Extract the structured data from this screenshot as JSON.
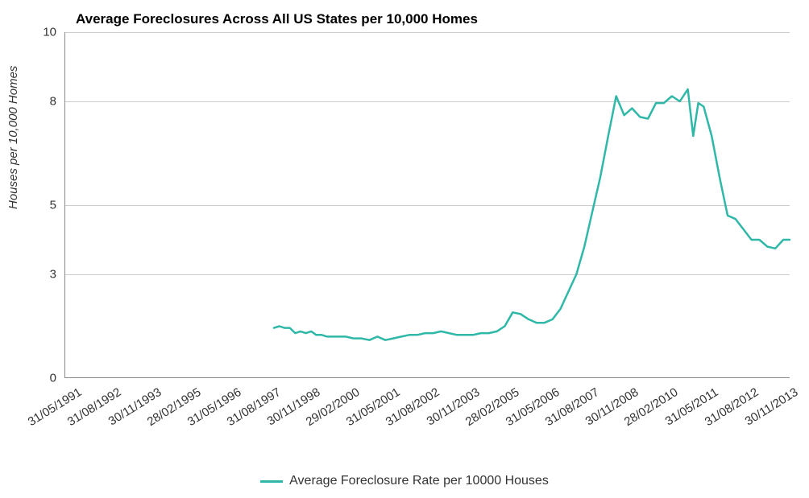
{
  "chart": {
    "type": "line",
    "title": "Average Foreclosures Across All US States per 10,000 Homes",
    "title_fontsize": 17,
    "title_fontweight": "bold",
    "y_axis_label": "Houses per 10,000 Homes",
    "y_axis_fontsize": 15,
    "y_axis_fontstyle": "italic",
    "background_color": "#ffffff",
    "grid_color": "#cccccc",
    "axis_color": "#888888",
    "text_color": "#333333",
    "line_color": "#2fb8a8",
    "line_width": 2.5,
    "ylim": [
      0,
      10
    ],
    "y_ticks": [
      0,
      3,
      5,
      8,
      10
    ],
    "x_tick_labels": [
      "31/05/1991",
      "31/08/1992",
      "30/11/1993",
      "28/02/1995",
      "31/05/1996",
      "31/08/1997",
      "30/11/1998",
      "29/02/2000",
      "31/05/2001",
      "31/08/2002",
      "30/11/2003",
      "28/02/2005",
      "31/05/2006",
      "31/08/2007",
      "30/11/2008",
      "28/02/2010",
      "31/05/2011",
      "31/08/2012",
      "30/11/2013"
    ],
    "x_tick_fontsize": 15,
    "x_tick_rotation": -32,
    "x_range": [
      1991.42,
      2014.2
    ],
    "legend_label": "Average Foreclosure Rate per 10000 Houses",
    "legend_fontsize": 16,
    "series": [
      {
        "x": 1998.0,
        "y": 1.45
      },
      {
        "x": 1998.17,
        "y": 1.5
      },
      {
        "x": 1998.33,
        "y": 1.45
      },
      {
        "x": 1998.5,
        "y": 1.45
      },
      {
        "x": 1998.67,
        "y": 1.3
      },
      {
        "x": 1998.83,
        "y": 1.35
      },
      {
        "x": 1999.0,
        "y": 1.3
      },
      {
        "x": 1999.17,
        "y": 1.35
      },
      {
        "x": 1999.33,
        "y": 1.25
      },
      {
        "x": 1999.5,
        "y": 1.25
      },
      {
        "x": 1999.67,
        "y": 1.2
      },
      {
        "x": 1999.83,
        "y": 1.2
      },
      {
        "x": 2000.0,
        "y": 1.2
      },
      {
        "x": 2000.25,
        "y": 1.2
      },
      {
        "x": 2000.5,
        "y": 1.15
      },
      {
        "x": 2000.75,
        "y": 1.15
      },
      {
        "x": 2001.0,
        "y": 1.1
      },
      {
        "x": 2001.25,
        "y": 1.2
      },
      {
        "x": 2001.5,
        "y": 1.1
      },
      {
        "x": 2001.75,
        "y": 1.15
      },
      {
        "x": 2002.0,
        "y": 1.2
      },
      {
        "x": 2002.25,
        "y": 1.25
      },
      {
        "x": 2002.5,
        "y": 1.25
      },
      {
        "x": 2002.75,
        "y": 1.3
      },
      {
        "x": 2003.0,
        "y": 1.3
      },
      {
        "x": 2003.25,
        "y": 1.35
      },
      {
        "x": 2003.5,
        "y": 1.3
      },
      {
        "x": 2003.75,
        "y": 1.25
      },
      {
        "x": 2004.0,
        "y": 1.25
      },
      {
        "x": 2004.25,
        "y": 1.25
      },
      {
        "x": 2004.5,
        "y": 1.3
      },
      {
        "x": 2004.75,
        "y": 1.3
      },
      {
        "x": 2005.0,
        "y": 1.35
      },
      {
        "x": 2005.25,
        "y": 1.5
      },
      {
        "x": 2005.5,
        "y": 1.9
      },
      {
        "x": 2005.75,
        "y": 1.85
      },
      {
        "x": 2006.0,
        "y": 1.7
      },
      {
        "x": 2006.25,
        "y": 1.6
      },
      {
        "x": 2006.5,
        "y": 1.6
      },
      {
        "x": 2006.75,
        "y": 1.7
      },
      {
        "x": 2007.0,
        "y": 2.0
      },
      {
        "x": 2007.25,
        "y": 2.5
      },
      {
        "x": 2007.5,
        "y": 3.0
      },
      {
        "x": 2007.75,
        "y": 3.8
      },
      {
        "x": 2008.0,
        "y": 4.8
      },
      {
        "x": 2008.25,
        "y": 5.8
      },
      {
        "x": 2008.5,
        "y": 7.0
      },
      {
        "x": 2008.75,
        "y": 8.15
      },
      {
        "x": 2009.0,
        "y": 7.6
      },
      {
        "x": 2009.25,
        "y": 7.8
      },
      {
        "x": 2009.5,
        "y": 7.55
      },
      {
        "x": 2009.75,
        "y": 7.5
      },
      {
        "x": 2010.0,
        "y": 7.95
      },
      {
        "x": 2010.25,
        "y": 7.95
      },
      {
        "x": 2010.5,
        "y": 8.15
      },
      {
        "x": 2010.75,
        "y": 8.0
      },
      {
        "x": 2011.0,
        "y": 8.35
      },
      {
        "x": 2011.17,
        "y": 7.0
      },
      {
        "x": 2011.33,
        "y": 7.95
      },
      {
        "x": 2011.5,
        "y": 7.85
      },
      {
        "x": 2011.75,
        "y": 7.0
      },
      {
        "x": 2012.0,
        "y": 5.8
      },
      {
        "x": 2012.25,
        "y": 4.7
      },
      {
        "x": 2012.5,
        "y": 4.6
      },
      {
        "x": 2012.75,
        "y": 4.3
      },
      {
        "x": 2013.0,
        "y": 4.0
      },
      {
        "x": 2013.25,
        "y": 4.0
      },
      {
        "x": 2013.5,
        "y": 3.8
      },
      {
        "x": 2013.75,
        "y": 3.75
      },
      {
        "x": 2014.0,
        "y": 4.0
      },
      {
        "x": 2014.2,
        "y": 4.0
      }
    ]
  }
}
